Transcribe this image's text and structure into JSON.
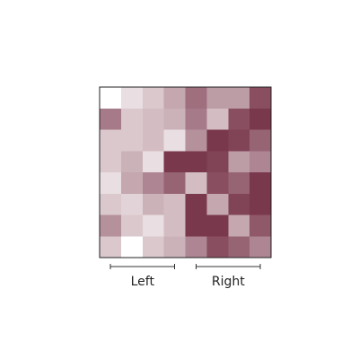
{
  "chart_data": {
    "type": "heatmap",
    "rows": 8,
    "cols": 8,
    "values": [
      [
        0.0,
        0.15,
        0.25,
        0.4,
        0.65,
        0.45,
        0.45,
        0.8
      ],
      [
        0.6,
        0.25,
        0.3,
        0.35,
        0.6,
        0.3,
        0.8,
        0.9
      ],
      [
        0.25,
        0.25,
        0.3,
        0.15,
        0.5,
        0.9,
        0.85,
        0.7
      ],
      [
        0.25,
        0.35,
        0.15,
        0.9,
        0.9,
        0.85,
        0.45,
        0.55
      ],
      [
        0.15,
        0.4,
        0.55,
        0.7,
        0.3,
        0.8,
        0.7,
        0.9
      ],
      [
        0.25,
        0.2,
        0.35,
        0.3,
        0.9,
        0.4,
        0.85,
        0.9
      ],
      [
        0.5,
        0.25,
        0.15,
        0.3,
        0.9,
        0.9,
        0.4,
        0.75
      ],
      [
        0.25,
        0.0,
        0.25,
        0.35,
        0.55,
        0.8,
        0.7,
        0.55
      ]
    ],
    "color_low": "#ffffff",
    "color_high": "#6b2238",
    "column_groups": [
      {
        "label": "Left",
        "start_col": 0,
        "end_col": 3
      },
      {
        "label": "Right",
        "start_col": 4,
        "end_col": 7
      }
    ],
    "legend": "none",
    "grid": false
  }
}
